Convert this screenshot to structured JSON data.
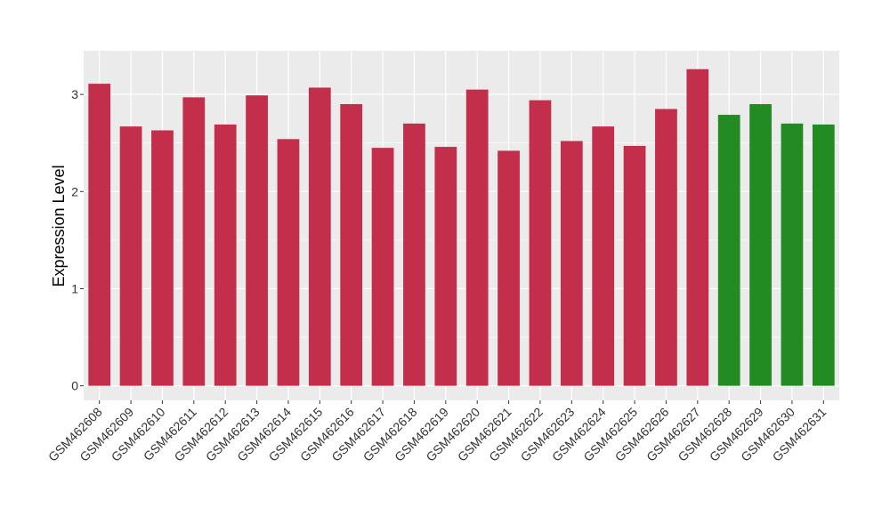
{
  "chart_data": {
    "type": "bar",
    "title": "",
    "xlabel": "",
    "ylabel": "Expression Level",
    "ylim": [
      -0.15,
      3.45
    ],
    "y_ticks": [
      0,
      1,
      2,
      3
    ],
    "grid": true,
    "legend": "none",
    "background_color": "#EBEBEB",
    "gridline_color": "#FFFFFF",
    "categories": [
      "GSM462608",
      "GSM462609",
      "GSM462610",
      "GSM462611",
      "GSM462612",
      "GSM462613",
      "GSM462614",
      "GSM462615",
      "GSM462616",
      "GSM462617",
      "GSM462618",
      "GSM462619",
      "GSM462620",
      "GSM462621",
      "GSM462622",
      "GSM462623",
      "GSM462624",
      "GSM462625",
      "GSM462626",
      "GSM462627",
      "GSM462628",
      "GSM462629",
      "GSM462630",
      "GSM462631"
    ],
    "values": [
      3.11,
      2.67,
      2.63,
      2.97,
      2.69,
      2.99,
      2.54,
      3.07,
      2.9,
      2.45,
      2.7,
      2.46,
      3.05,
      2.42,
      2.94,
      2.52,
      2.67,
      2.47,
      2.85,
      3.26,
      2.79,
      2.9,
      2.7,
      2.69
    ],
    "bar_colors": [
      "#C32F4B",
      "#C32F4B",
      "#C32F4B",
      "#C32F4B",
      "#C32F4B",
      "#C32F4B",
      "#C32F4B",
      "#C32F4B",
      "#C32F4B",
      "#C32F4B",
      "#C32F4B",
      "#C32F4B",
      "#C32F4B",
      "#C32F4B",
      "#C32F4B",
      "#C32F4B",
      "#C32F4B",
      "#C32F4B",
      "#C32F4B",
      "#C32F4B",
      "#228B22",
      "#228B22",
      "#228B22",
      "#228B22"
    ]
  }
}
